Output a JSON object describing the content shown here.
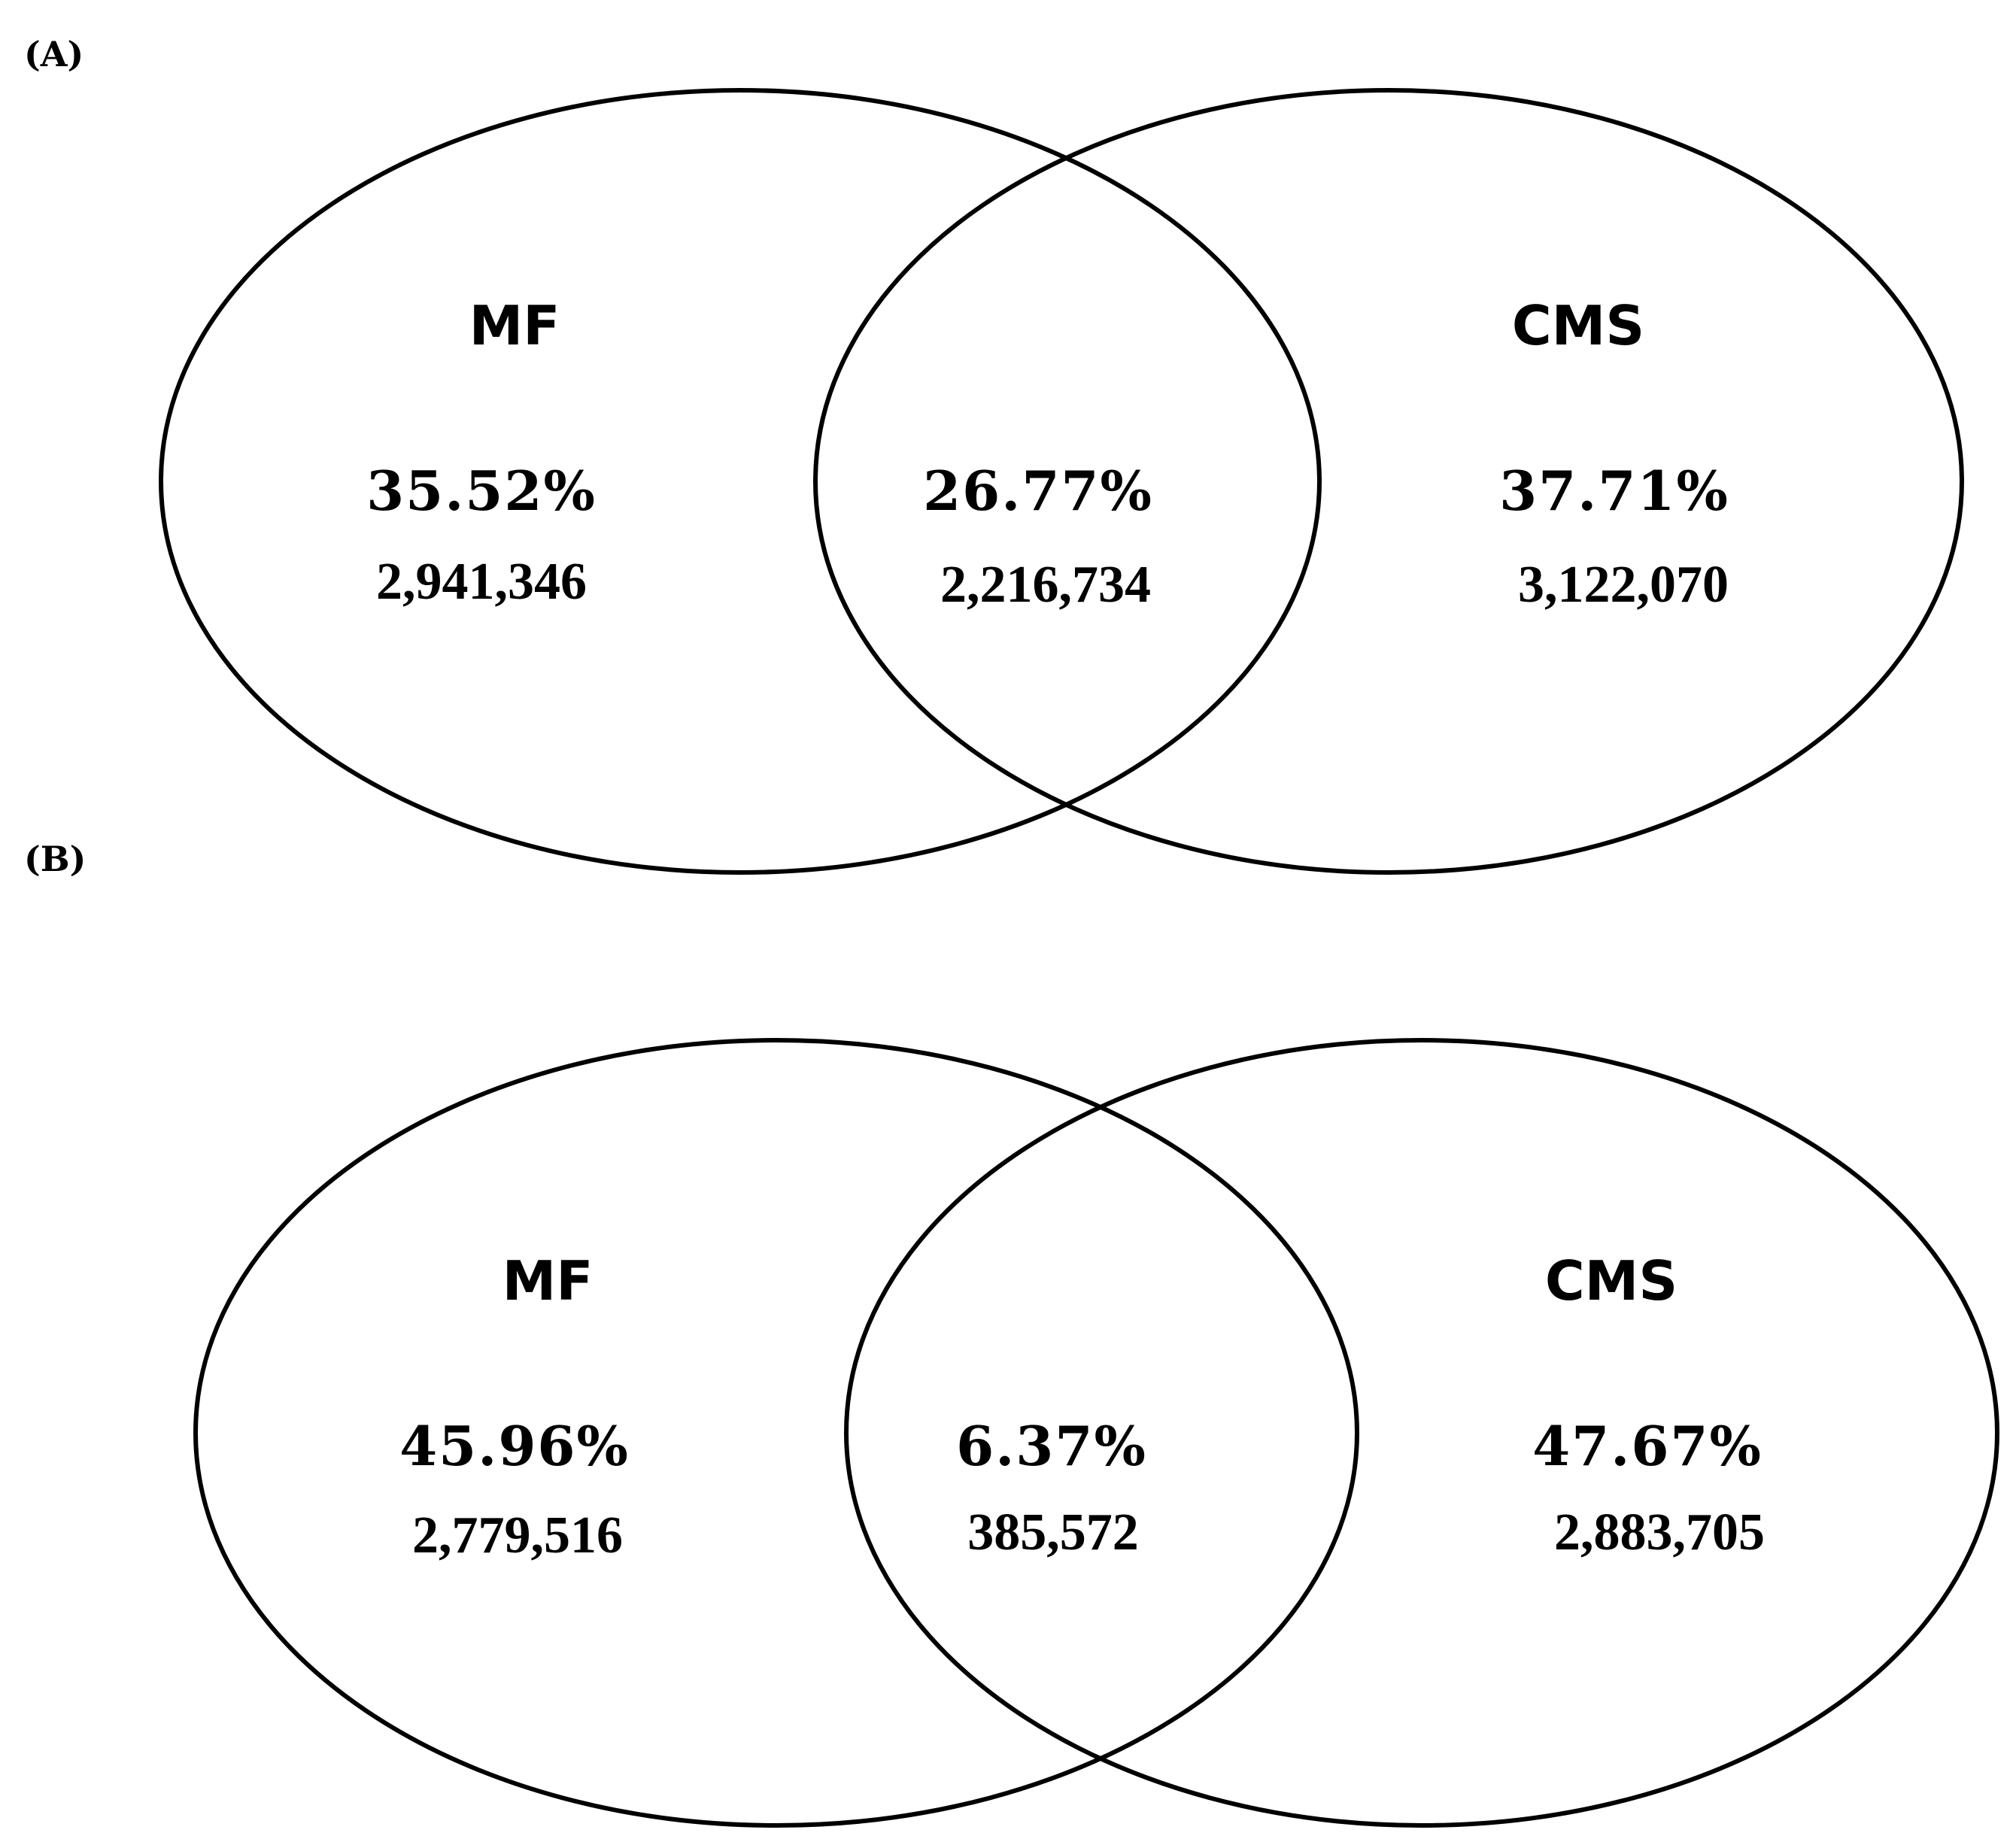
{
  "panels": [
    {
      "label": "(A)",
      "left_set": {
        "name": "MF",
        "percent": "35.52%",
        "count": "2,941,346"
      },
      "overlap": {
        "percent": "26.77%",
        "count": "2,216,734"
      },
      "right_set": {
        "name": "CMS",
        "percent": "37.71%",
        "count": "3,122,070"
      }
    },
    {
      "label": "(B)",
      "left_set": {
        "name": "MF",
        "percent": "45.96%",
        "count": "2,779,516"
      },
      "overlap": {
        "percent": "6.37%",
        "count": "385,572"
      },
      "right_set": {
        "name": "CMS",
        "percent": "47.67%",
        "count": "2,883,705"
      }
    }
  ]
}
